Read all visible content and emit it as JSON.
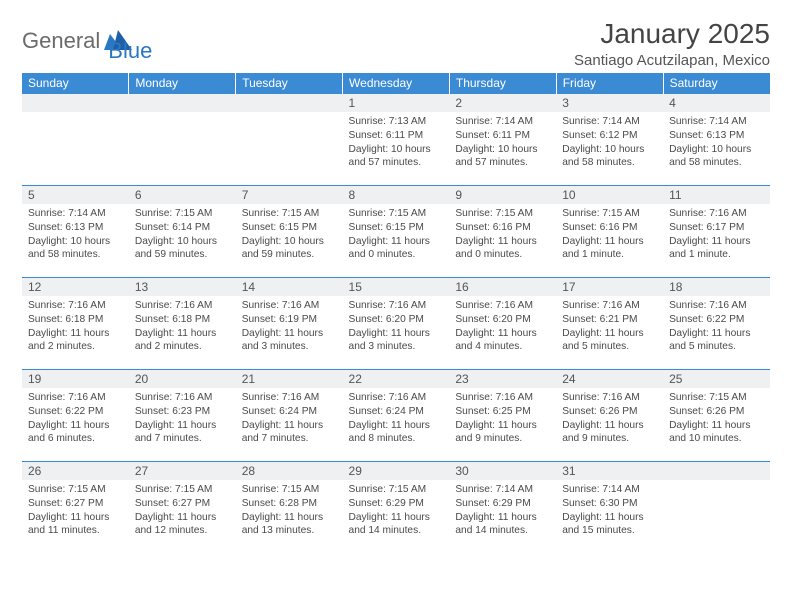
{
  "brand": {
    "text_general": "General",
    "text_blue": "Blue"
  },
  "title": "January 2025",
  "location": "Santiago Acutzilapan, Mexico",
  "dayHeaders": [
    "Sunday",
    "Monday",
    "Tuesday",
    "Wednesday",
    "Thursday",
    "Friday",
    "Saturday"
  ],
  "colors": {
    "header_bg": "#3b8bd4",
    "header_text": "#ffffff",
    "daynum_bg": "#eef0f2",
    "cell_border": "#3b8bd4",
    "body_text": "#4a4a4a",
    "brand_gray": "#6b6b6b",
    "brand_blue": "#2b78c2"
  },
  "typography": {
    "title_fontsize": 28,
    "location_fontsize": 15,
    "dayhdr_fontsize": 12,
    "daynum_fontsize": 12,
    "info_fontsize": 10.2
  },
  "startOffset": 3,
  "days": [
    {
      "n": 1,
      "sunrise": "7:13 AM",
      "sunset": "6:11 PM",
      "daylight": "10 hours and 57 minutes."
    },
    {
      "n": 2,
      "sunrise": "7:14 AM",
      "sunset": "6:11 PM",
      "daylight": "10 hours and 57 minutes."
    },
    {
      "n": 3,
      "sunrise": "7:14 AM",
      "sunset": "6:12 PM",
      "daylight": "10 hours and 58 minutes."
    },
    {
      "n": 4,
      "sunrise": "7:14 AM",
      "sunset": "6:13 PM",
      "daylight": "10 hours and 58 minutes."
    },
    {
      "n": 5,
      "sunrise": "7:14 AM",
      "sunset": "6:13 PM",
      "daylight": "10 hours and 58 minutes."
    },
    {
      "n": 6,
      "sunrise": "7:15 AM",
      "sunset": "6:14 PM",
      "daylight": "10 hours and 59 minutes."
    },
    {
      "n": 7,
      "sunrise": "7:15 AM",
      "sunset": "6:15 PM",
      "daylight": "10 hours and 59 minutes."
    },
    {
      "n": 8,
      "sunrise": "7:15 AM",
      "sunset": "6:15 PM",
      "daylight": "11 hours and 0 minutes."
    },
    {
      "n": 9,
      "sunrise": "7:15 AM",
      "sunset": "6:16 PM",
      "daylight": "11 hours and 0 minutes."
    },
    {
      "n": 10,
      "sunrise": "7:15 AM",
      "sunset": "6:16 PM",
      "daylight": "11 hours and 1 minute."
    },
    {
      "n": 11,
      "sunrise": "7:16 AM",
      "sunset": "6:17 PM",
      "daylight": "11 hours and 1 minute."
    },
    {
      "n": 12,
      "sunrise": "7:16 AM",
      "sunset": "6:18 PM",
      "daylight": "11 hours and 2 minutes."
    },
    {
      "n": 13,
      "sunrise": "7:16 AM",
      "sunset": "6:18 PM",
      "daylight": "11 hours and 2 minutes."
    },
    {
      "n": 14,
      "sunrise": "7:16 AM",
      "sunset": "6:19 PM",
      "daylight": "11 hours and 3 minutes."
    },
    {
      "n": 15,
      "sunrise": "7:16 AM",
      "sunset": "6:20 PM",
      "daylight": "11 hours and 3 minutes."
    },
    {
      "n": 16,
      "sunrise": "7:16 AM",
      "sunset": "6:20 PM",
      "daylight": "11 hours and 4 minutes."
    },
    {
      "n": 17,
      "sunrise": "7:16 AM",
      "sunset": "6:21 PM",
      "daylight": "11 hours and 5 minutes."
    },
    {
      "n": 18,
      "sunrise": "7:16 AM",
      "sunset": "6:22 PM",
      "daylight": "11 hours and 5 minutes."
    },
    {
      "n": 19,
      "sunrise": "7:16 AM",
      "sunset": "6:22 PM",
      "daylight": "11 hours and 6 minutes."
    },
    {
      "n": 20,
      "sunrise": "7:16 AM",
      "sunset": "6:23 PM",
      "daylight": "11 hours and 7 minutes."
    },
    {
      "n": 21,
      "sunrise": "7:16 AM",
      "sunset": "6:24 PM",
      "daylight": "11 hours and 7 minutes."
    },
    {
      "n": 22,
      "sunrise": "7:16 AM",
      "sunset": "6:24 PM",
      "daylight": "11 hours and 8 minutes."
    },
    {
      "n": 23,
      "sunrise": "7:16 AM",
      "sunset": "6:25 PM",
      "daylight": "11 hours and 9 minutes."
    },
    {
      "n": 24,
      "sunrise": "7:16 AM",
      "sunset": "6:26 PM",
      "daylight": "11 hours and 9 minutes."
    },
    {
      "n": 25,
      "sunrise": "7:15 AM",
      "sunset": "6:26 PM",
      "daylight": "11 hours and 10 minutes."
    },
    {
      "n": 26,
      "sunrise": "7:15 AM",
      "sunset": "6:27 PM",
      "daylight": "11 hours and 11 minutes."
    },
    {
      "n": 27,
      "sunrise": "7:15 AM",
      "sunset": "6:27 PM",
      "daylight": "11 hours and 12 minutes."
    },
    {
      "n": 28,
      "sunrise": "7:15 AM",
      "sunset": "6:28 PM",
      "daylight": "11 hours and 13 minutes."
    },
    {
      "n": 29,
      "sunrise": "7:15 AM",
      "sunset": "6:29 PM",
      "daylight": "11 hours and 14 minutes."
    },
    {
      "n": 30,
      "sunrise": "7:14 AM",
      "sunset": "6:29 PM",
      "daylight": "11 hours and 14 minutes."
    },
    {
      "n": 31,
      "sunrise": "7:14 AM",
      "sunset": "6:30 PM",
      "daylight": "11 hours and 15 minutes."
    }
  ],
  "labels": {
    "sunrise": "Sunrise: ",
    "sunset": "Sunset: ",
    "daylight": "Daylight: "
  }
}
